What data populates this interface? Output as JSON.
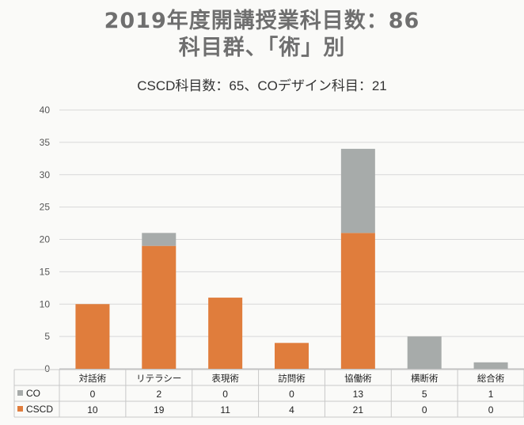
{
  "title_line1": "2019年度開講授業科目数：86",
  "title_line2": "科目群、「術」別",
  "subtitle": "CSCD科目数：65、COデザイン科目：21",
  "colors": {
    "co": "#a7abaa",
    "cscd": "#e07d3c",
    "grid": "#d8d8d8"
  },
  "chart_data": {
    "type": "bar",
    "stacked": true,
    "categories": [
      "対話術",
      "リテラシー",
      "表現術",
      "訪問術",
      "協働術",
      "横断術",
      "総合術"
    ],
    "series": [
      {
        "name": "CSCD",
        "values": [
          10,
          19,
          11,
          4,
          21,
          0,
          0
        ]
      },
      {
        "name": "CO",
        "values": [
          0,
          2,
          0,
          0,
          13,
          5,
          1
        ]
      }
    ],
    "ylim": [
      0,
      40
    ],
    "yticks": [
      0,
      5,
      10,
      15,
      20,
      25,
      30,
      35,
      40
    ],
    "grid": true,
    "data_table": true,
    "legend_position": "in data table"
  }
}
